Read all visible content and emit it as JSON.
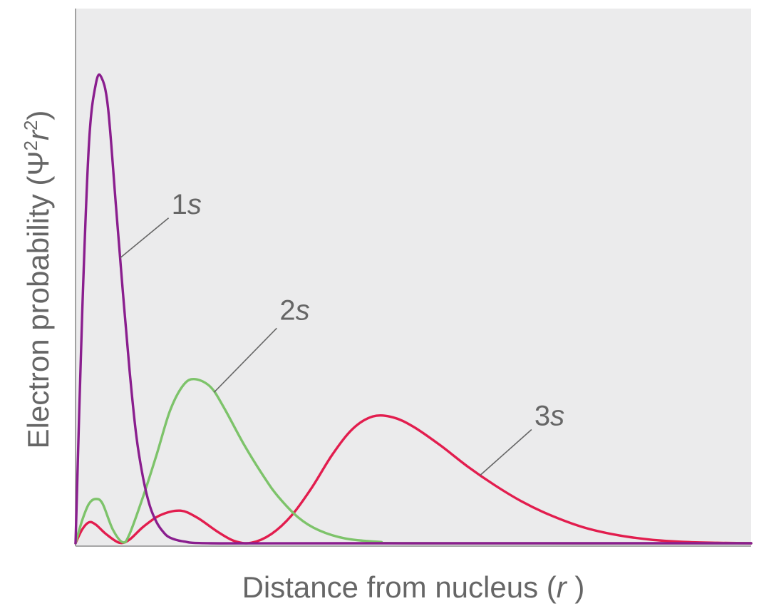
{
  "chart_data": {
    "type": "line",
    "title": "",
    "xlabel": {
      "prefix": "Distance from nucleus (",
      "italic": "r",
      "suffix": " )"
    },
    "ylabel": {
      "prefix": "Electron probability (Ψ",
      "sup1": "2",
      "italic": "r",
      "sup2": "2",
      "suffix": ")"
    },
    "x_ticks": [],
    "y_ticks": [],
    "grid": false,
    "xlim": [
      0,
      1
    ],
    "ylim": [
      0,
      1
    ],
    "colors": {
      "background": "#ebebec",
      "axis": "#8c8c8c",
      "label": "#666666",
      "leader": "#666666"
    },
    "series": [
      {
        "name": "1s",
        "label": {
          "number": "1",
          "letter": "s"
        },
        "color": "#8a1e8e",
        "points": [
          [
            0.0,
            0.0
          ],
          [
            0.01,
            0.5
          ],
          [
            0.02,
            0.86
          ],
          [
            0.03,
            0.985
          ],
          [
            0.038,
            1.0
          ],
          [
            0.048,
            0.935
          ],
          [
            0.06,
            0.72
          ],
          [
            0.07,
            0.54
          ],
          [
            0.08,
            0.37
          ],
          [
            0.09,
            0.23
          ],
          [
            0.1,
            0.14
          ],
          [
            0.11,
            0.08
          ],
          [
            0.12,
            0.045
          ],
          [
            0.13,
            0.024
          ],
          [
            0.14,
            0.012
          ],
          [
            0.16,
            0.004
          ],
          [
            0.2,
            0.0
          ],
          [
            0.4,
            0.0
          ],
          [
            1.0,
            0.0
          ]
        ]
      },
      {
        "name": "2s",
        "label": {
          "number": "2",
          "letter": "s"
        },
        "color": "#7dc36a",
        "points": [
          [
            0.0,
            0.0
          ],
          [
            0.01,
            0.05
          ],
          [
            0.02,
            0.085
          ],
          [
            0.03,
            0.095
          ],
          [
            0.04,
            0.085
          ],
          [
            0.055,
            0.03
          ],
          [
            0.07,
            0.002
          ],
          [
            0.08,
            0.02
          ],
          [
            0.1,
            0.1
          ],
          [
            0.12,
            0.19
          ],
          [
            0.14,
            0.285
          ],
          [
            0.16,
            0.34
          ],
          [
            0.177,
            0.352
          ],
          [
            0.2,
            0.335
          ],
          [
            0.22,
            0.29
          ],
          [
            0.25,
            0.21
          ],
          [
            0.28,
            0.14
          ],
          [
            0.3,
            0.1
          ],
          [
            0.33,
            0.055
          ],
          [
            0.36,
            0.028
          ],
          [
            0.4,
            0.01
          ],
          [
            0.45,
            0.003
          ],
          [
            0.5,
            0.0
          ],
          [
            1.0,
            0.0
          ]
        ]
      },
      {
        "name": "3s",
        "label": {
          "number": "3",
          "letter": "s"
        },
        "color": "#e21d4e",
        "points": [
          [
            0.0,
            0.0
          ],
          [
            0.01,
            0.03
          ],
          [
            0.02,
            0.045
          ],
          [
            0.03,
            0.04
          ],
          [
            0.045,
            0.02
          ],
          [
            0.065,
            0.001
          ],
          [
            0.08,
            0.008
          ],
          [
            0.1,
            0.035
          ],
          [
            0.125,
            0.06
          ],
          [
            0.155,
            0.07
          ],
          [
            0.18,
            0.055
          ],
          [
            0.21,
            0.025
          ],
          [
            0.235,
            0.005
          ],
          [
            0.26,
            0.001
          ],
          [
            0.29,
            0.02
          ],
          [
            0.32,
            0.06
          ],
          [
            0.35,
            0.12
          ],
          [
            0.38,
            0.19
          ],
          [
            0.41,
            0.245
          ],
          [
            0.44,
            0.272
          ],
          [
            0.47,
            0.27
          ],
          [
            0.5,
            0.25
          ],
          [
            0.54,
            0.21
          ],
          [
            0.58,
            0.165
          ],
          [
            0.62,
            0.125
          ],
          [
            0.66,
            0.09
          ],
          [
            0.7,
            0.062
          ],
          [
            0.75,
            0.035
          ],
          [
            0.8,
            0.018
          ],
          [
            0.85,
            0.008
          ],
          [
            0.9,
            0.003
          ],
          [
            0.95,
            0.001
          ],
          [
            1.0,
            0.0
          ]
        ]
      }
    ],
    "annotations": [
      {
        "series": "1s",
        "anchor_x": 0.066,
        "text_side": "upper-right"
      },
      {
        "series": "2s",
        "anchor_x": 0.205,
        "text_side": "upper-right"
      },
      {
        "series": "3s",
        "anchor_x": 0.599,
        "text_side": "upper-right"
      }
    ]
  }
}
